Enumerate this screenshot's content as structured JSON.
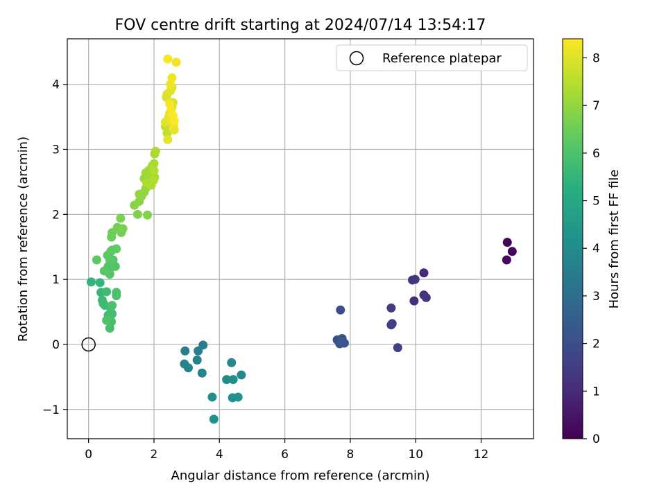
{
  "chart_data": {
    "type": "scatter",
    "title": "FOV centre drift starting at 2024/07/14 13:54:17",
    "xlabel": "Angular distance from reference (arcmin)",
    "ylabel": "Rotation from reference (arcmin)",
    "xlim": [
      -0.65,
      13.6
    ],
    "ylim": [
      -1.45,
      4.7
    ],
    "xticks": [
      0,
      2,
      4,
      6,
      8,
      10,
      12
    ],
    "yticks": [
      -1,
      0,
      1,
      2,
      3,
      4
    ],
    "grid": true,
    "legend": {
      "placement": "top-right",
      "entries": [
        "Reference platepar"
      ]
    },
    "reference_point": {
      "x": 0,
      "y": 0,
      "label": "Reference platepar"
    },
    "colorbar": {
      "label": "Hours from first FF file",
      "range": [
        0,
        8.4
      ],
      "ticks": [
        0,
        1,
        2,
        3,
        4,
        5,
        6,
        7,
        8
      ],
      "colormap": "viridis"
    },
    "series": [
      {
        "x": [
          12.8,
          12.95,
          12.78,
          10.25,
          9.95,
          9.9,
          10.25,
          10.32,
          9.98,
          9.25,
          9.25,
          9.28,
          9.45,
          7.7,
          7.6,
          7.68,
          7.75,
          7.82,
          7.7,
          3.5,
          2.95,
          3.35,
          3.32,
          2.93,
          3.05,
          3.47,
          4.37,
          4.67,
          4.22,
          4.42,
          3.78,
          4.4,
          4.57,
          3.83,
          0.08,
          0.35,
          0.38,
          0.45,
          0.42,
          0.5,
          0.55,
          0.6,
          0.65,
          0.72,
          0.68,
          0.7,
          0.65,
          0.72,
          0.85,
          0.85,
          0.55,
          0.6,
          0.68,
          0.75,
          0.82,
          0.65,
          0.68,
          0.48,
          0.65,
          0.25,
          0.58,
          0.72,
          0.85,
          0.7,
          0.72,
          0.88,
          1.0,
          1.05,
          0.98,
          1.5,
          1.8,
          1.4,
          1.55,
          1.62,
          1.7,
          1.55,
          1.75,
          1.8,
          1.82,
          1.7,
          1.75,
          1.85,
          1.95,
          2.02,
          1.95,
          2.0,
          2.02,
          2.05,
          1.78,
          1.92,
          1.98,
          2.0,
          2.4,
          2.35,
          2.42,
          2.45,
          2.48,
          2.52,
          2.55,
          2.58,
          2.38,
          2.4,
          2.5,
          2.55,
          2.45,
          2.35,
          2.62,
          2.42,
          2.45,
          2.55,
          2.6,
          2.5,
          2.55,
          2.68,
          2.42,
          2.48,
          2.52,
          2.58,
          2.62
        ],
        "y": [
          1.57,
          1.43,
          1.3,
          1.1,
          0.67,
          0.99,
          0.76,
          0.72,
          1.0,
          0.56,
          0.3,
          0.32,
          -0.05,
          0.53,
          0.07,
          0.01,
          0.09,
          0.02,
          0.05,
          -0.01,
          -0.1,
          -0.1,
          -0.24,
          -0.3,
          -0.36,
          -0.44,
          -0.28,
          -0.47,
          -0.54,
          -0.54,
          -0.81,
          -0.82,
          -0.81,
          -1.15,
          0.96,
          0.95,
          0.8,
          0.63,
          0.68,
          0.6,
          0.81,
          0.45,
          0.42,
          0.47,
          0.5,
          0.35,
          0.25,
          0.6,
          0.8,
          0.75,
          0.37,
          1.2,
          1.18,
          1.3,
          1.2,
          1.08,
          1.43,
          1.13,
          1.3,
          1.3,
          1.37,
          1.45,
          1.47,
          1.65,
          1.72,
          1.8,
          1.72,
          1.78,
          1.94,
          2.0,
          1.99,
          2.14,
          2.2,
          2.28,
          2.34,
          2.31,
          2.4,
          2.47,
          2.5,
          2.55,
          2.64,
          2.68,
          2.6,
          2.57,
          2.75,
          2.78,
          2.93,
          2.97,
          2.48,
          2.45,
          2.52,
          2.67,
          3.25,
          3.35,
          3.4,
          3.48,
          3.55,
          3.6,
          3.65,
          3.72,
          3.8,
          3.85,
          3.9,
          3.95,
          3.45,
          3.42,
          3.3,
          3.15,
          3.5,
          3.42,
          3.38,
          4.0,
          4.1,
          4.34,
          4.39,
          3.7,
          3.6,
          3.52,
          3.44
        ],
        "color_values": [
          0.1,
          0.15,
          0.2,
          1.0,
          1.1,
          1.15,
          1.2,
          1.25,
          1.3,
          1.45,
          1.5,
          1.55,
          1.6,
          2.0,
          2.05,
          2.1,
          2.15,
          2.2,
          2.25,
          3.5,
          3.55,
          3.6,
          3.65,
          3.7,
          3.75,
          3.8,
          3.9,
          3.95,
          4.0,
          4.05,
          4.1,
          4.15,
          4.2,
          4.25,
          5.45,
          5.5,
          5.55,
          5.6,
          5.65,
          5.7,
          5.75,
          5.78,
          5.8,
          5.82,
          5.85,
          5.88,
          5.9,
          5.92,
          5.95,
          5.98,
          6.0,
          6.05,
          6.08,
          6.1,
          6.12,
          6.15,
          6.18,
          6.2,
          6.22,
          6.25,
          6.28,
          6.3,
          6.32,
          6.45,
          6.5,
          6.55,
          6.6,
          6.65,
          6.7,
          6.75,
          6.8,
          6.85,
          6.9,
          6.95,
          7.0,
          7.02,
          7.05,
          7.08,
          7.1,
          7.12,
          7.15,
          7.18,
          7.2,
          7.22,
          7.25,
          7.28,
          7.3,
          7.32,
          7.35,
          7.38,
          7.4,
          7.42,
          7.6,
          7.65,
          7.7,
          7.75,
          7.8,
          7.85,
          7.88,
          7.9,
          7.92,
          7.95,
          7.98,
          8.0,
          8.02,
          8.05,
          8.08,
          8.1,
          8.12,
          8.15,
          8.18,
          8.2,
          8.22,
          8.25,
          8.3,
          8.32,
          8.34,
          8.36,
          8.38
        ]
      }
    ]
  }
}
